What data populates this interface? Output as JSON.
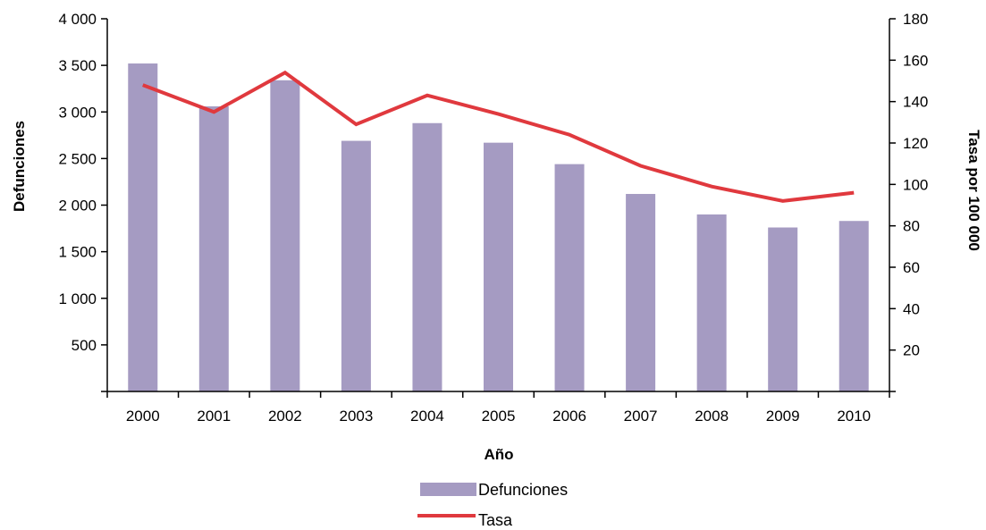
{
  "chart_data": {
    "type": "bar",
    "categories": [
      "2000",
      "2001",
      "2002",
      "2003",
      "2004",
      "2005",
      "2006",
      "2007",
      "2008",
      "2009",
      "2010"
    ],
    "series": [
      {
        "name": "Defunciones",
        "type": "bar",
        "axis": "left",
        "color": "#a59bc2",
        "values": [
          3520,
          3060,
          3340,
          2690,
          2880,
          2670,
          2440,
          2120,
          1900,
          1760,
          1830
        ]
      },
      {
        "name": "Tasa",
        "type": "line",
        "axis": "right",
        "color": "#e0393e",
        "values": [
          148,
          135,
          154,
          129,
          143,
          134,
          124,
          109,
          99,
          92,
          96
        ]
      }
    ],
    "xlabel": "Año",
    "ylabel": "Defunciones",
    "y2label": "Tasa por 100 000",
    "ylim": [
      0,
      4000
    ],
    "y2lim": [
      0,
      180
    ],
    "yticks": [
      {
        "value": 500,
        "label": "500"
      },
      {
        "value": 1000,
        "label": "1 000"
      },
      {
        "value": 1500,
        "label": "1 500"
      },
      {
        "value": 2000,
        "label": "2 000"
      },
      {
        "value": 2500,
        "label": "2 500"
      },
      {
        "value": 3000,
        "label": "3 000"
      },
      {
        "value": 3500,
        "label": "3 500"
      },
      {
        "value": 4000,
        "label": "4 000"
      }
    ],
    "y2ticks": [
      {
        "value": 20,
        "label": "20"
      },
      {
        "value": 40,
        "label": "40"
      },
      {
        "value": 60,
        "label": "60"
      },
      {
        "value": 80,
        "label": "80"
      },
      {
        "value": 100,
        "label": "100"
      },
      {
        "value": 120,
        "label": "120"
      },
      {
        "value": 140,
        "label": "140"
      },
      {
        "value": 160,
        "label": "160"
      },
      {
        "value": 180,
        "label": "180"
      }
    ],
    "grid": false,
    "legend": "bottom-center"
  }
}
